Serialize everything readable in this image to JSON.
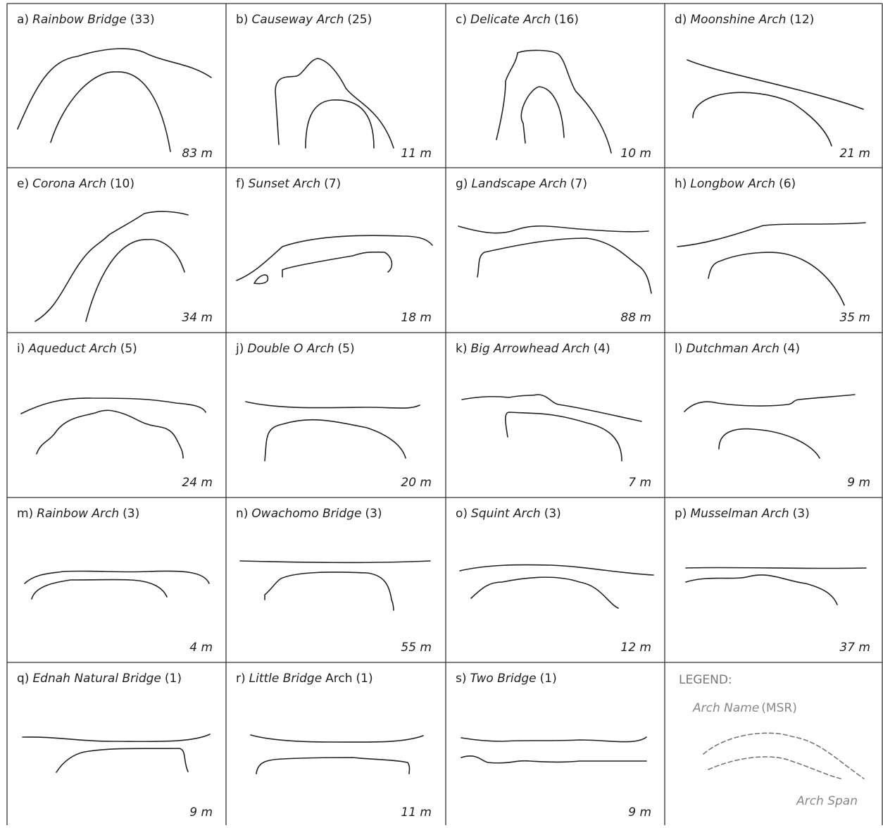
{
  "panels": [
    {
      "label": "a)",
      "name": "Rainbow Bridge",
      "msr": "(33)",
      "span": "83 m"
    },
    {
      "label": "b)",
      "name": "Causeway Arch",
      "msr": "(25)",
      "span": "11 m"
    },
    {
      "label": "c)",
      "name": "Delicate Arch",
      "msr": "(16)",
      "span": "10 m"
    },
    {
      "label": "d)",
      "name": "Moonshine Arch",
      "msr": "(12)",
      "span": "21 m"
    },
    {
      "label": "e)",
      "name": "Corona Arch",
      "msr": "(10)",
      "span": "34 m"
    },
    {
      "label": "f)",
      "name": "Sunset Arch",
      "msr": "(7)",
      "span": "18 m"
    },
    {
      "label": "g)",
      "name": "Landscape Arch",
      "msr": "(7)",
      "span": "88 m"
    },
    {
      "label": "h)",
      "name": "Longbow Arch",
      "msr": "(6)",
      "span": "35 m"
    },
    {
      "label": "i)",
      "name": "Aqueduct Arch",
      "msr": "(5)",
      "span": "24 m"
    },
    {
      "label": "j)",
      "name": "Double O Arch",
      "msr": "(5)",
      "span": "20 m"
    },
    {
      "label": "k)",
      "name": "Big Arrowhead Arch",
      "msr": "(4)",
      "span": "7 m"
    },
    {
      "label": "l)",
      "name": "Dutchman Arch",
      "msr": "(4)",
      "span": "9 m"
    },
    {
      "label": "m)",
      "name": "Rainbow Arch",
      "msr": "(3)",
      "span": "4 m"
    },
    {
      "label": "n)",
      "name": "Owachomo Bridge",
      "msr": "(3)",
      "span": "55 m"
    },
    {
      "label": "o)",
      "name": "Squint Arch",
      "msr": "(3)",
      "span": "12 m"
    },
    {
      "label": "p)",
      "name": "Musselman Arch",
      "msr": "(3)",
      "span": "37 m"
    },
    {
      "label": "q)",
      "name": "Ednah Natural Bridge",
      "msr": "(1)",
      "span": "9 m"
    },
    {
      "label": "r)",
      "name": "Little Bridge",
      "name_suffix": "Arch",
      "msr": "(1)",
      "span": "11 m"
    },
    {
      "label": "s)",
      "name": "Two Bridge",
      "msr": "(1)",
      "span": "9 m"
    }
  ],
  "legend": {
    "title": "LEGEND:",
    "name": "Arch Name",
    "msr": "(MSR)",
    "span": "Arch Span"
  }
}
